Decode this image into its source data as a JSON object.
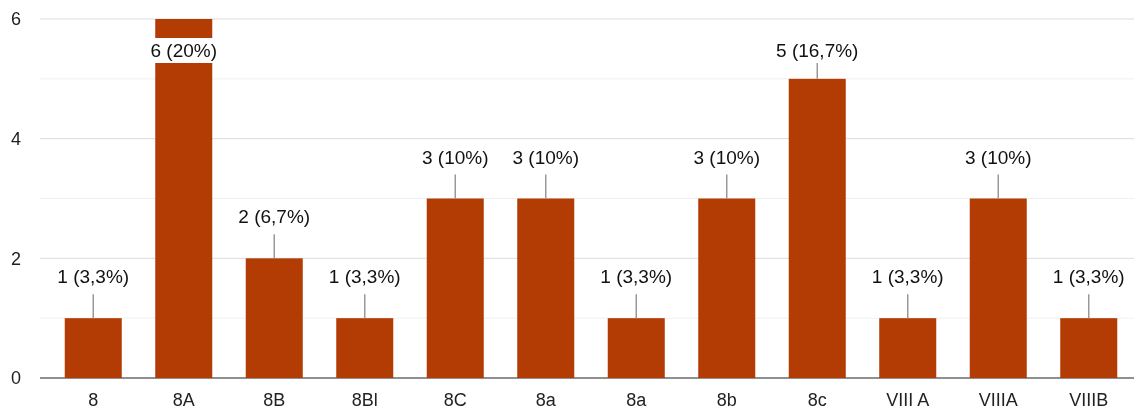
{
  "chart_data": {
    "type": "bar",
    "categories": [
      "8",
      "8A",
      "8B",
      "8Bl",
      "8C",
      "8a",
      "8a",
      "8b",
      "8c",
      "VIII A",
      "VIIIA",
      "VIIIB"
    ],
    "values": [
      1,
      6,
      2,
      1,
      3,
      3,
      1,
      3,
      5,
      1,
      3,
      1
    ],
    "value_labels": [
      "1 (3,3%)",
      "6 (20%)",
      "2 (6,7%)",
      "1 (3,3%)",
      "3 (10%)",
      "3 (10%)",
      "1 (3,3%)",
      "3 (10%)",
      "5 (16,7%)",
      "1 (3,3%)",
      "3 (10%)",
      "1 (3,3%)"
    ],
    "color": "#b23c04",
    "ylim": [
      0,
      6
    ],
    "yticks": [
      0,
      {
        "value": 1,
        "label": null
      },
      2,
      {
        "value": 3,
        "label": null
      },
      4,
      {
        "value": 5,
        "label": null
      },
      6
    ],
    "grid": true
  }
}
